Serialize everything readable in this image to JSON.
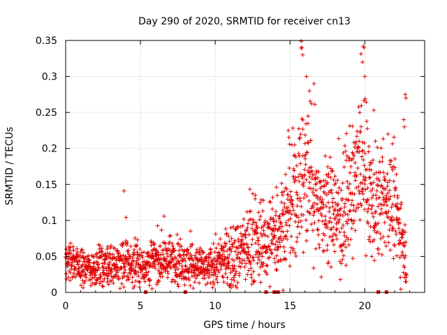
{
  "chart_data": {
    "type": "scatter",
    "title": "Day 290 of 2020, SRMTID for receiver cn13",
    "xlabel": "GPS time / hours",
    "ylabel": "SRMTID / TECUs",
    "xlim": [
      0,
      24
    ],
    "ylim": [
      0,
      0.35
    ],
    "grid": true,
    "marker": "+",
    "color": "#e00000",
    "x_ticks": [
      0,
      5,
      10,
      15,
      20
    ],
    "x_tick_labels": [
      "0",
      "5",
      "10",
      "15",
      "20"
    ],
    "y_ticks": [
      0,
      0.05,
      0.1,
      0.15,
      0.2,
      0.25,
      0.3,
      0.35
    ],
    "y_tick_labels": [
      "0",
      "0.05",
      "0.1",
      "0.15",
      "0.2",
      "0.25",
      "0.3",
      "0.35"
    ],
    "envelope": {
      "hours": [
        0.0,
        0.5,
        1.0,
        2.0,
        3.0,
        4.0,
        5.0,
        6.0,
        7.0,
        8.0,
        9.0,
        9.5,
        10.0,
        11.0,
        12.0,
        12.5,
        13.0,
        13.5,
        14.0,
        14.5,
        15.0,
        15.5,
        16.0,
        16.5,
        17.0,
        17.5,
        18.0,
        18.5,
        19.0,
        19.5,
        19.8,
        20.0,
        20.5,
        21.0,
        21.5,
        22.0,
        22.5,
        22.8
      ],
      "median": [
        0.04,
        0.045,
        0.035,
        0.035,
        0.04,
        0.04,
        0.035,
        0.045,
        0.045,
        0.04,
        0.035,
        0.03,
        0.04,
        0.05,
        0.06,
        0.07,
        0.065,
        0.07,
        0.08,
        0.095,
        0.11,
        0.14,
        0.17,
        0.15,
        0.12,
        0.11,
        0.11,
        0.1,
        0.13,
        0.16,
        0.18,
        0.16,
        0.12,
        0.12,
        0.13,
        0.12,
        0.08,
        0.05
      ],
      "spread": [
        0.012,
        0.015,
        0.012,
        0.013,
        0.015,
        0.016,
        0.014,
        0.016,
        0.016,
        0.015,
        0.014,
        0.012,
        0.016,
        0.02,
        0.025,
        0.03,
        0.025,
        0.028,
        0.03,
        0.035,
        0.04,
        0.05,
        0.055,
        0.05,
        0.04,
        0.035,
        0.035,
        0.035,
        0.04,
        0.05,
        0.055,
        0.05,
        0.04,
        0.035,
        0.035,
        0.035,
        0.03,
        0.02
      ]
    },
    "outliers": [
      {
        "x": 3.9,
        "y": 0.141
      },
      {
        "x": 15.75,
        "y": 0.349
      },
      {
        "x": 15.8,
        "y": 0.34
      },
      {
        "x": 15.85,
        "y": 0.33
      },
      {
        "x": 16.1,
        "y": 0.3
      },
      {
        "x": 16.3,
        "y": 0.28
      },
      {
        "x": 16.6,
        "y": 0.29
      },
      {
        "x": 19.9,
        "y": 0.342
      },
      {
        "x": 19.95,
        "y": 0.34
      },
      {
        "x": 19.85,
        "y": 0.32
      },
      {
        "x": 20.0,
        "y": 0.3
      },
      {
        "x": 20.6,
        "y": 0.253
      },
      {
        "x": 22.7,
        "y": 0.275
      },
      {
        "x": 22.75,
        "y": 0.27
      },
      {
        "x": 22.6,
        "y": 0.24
      },
      {
        "x": 22.65,
        "y": 0.23
      }
    ],
    "outage_marks_hours": [
      5.35,
      8.0,
      13.4,
      13.95,
      14.2,
      20.9,
      21.45
    ]
  }
}
